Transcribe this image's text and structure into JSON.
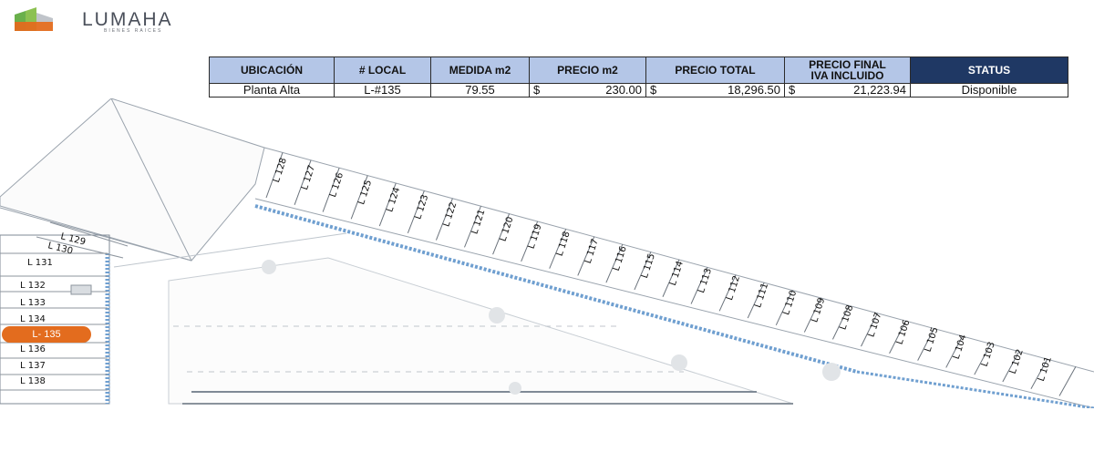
{
  "brand": {
    "name": "LUMAHA",
    "tagline": "BIENES RAICES",
    "colors": {
      "green": "#6ab04c",
      "orange": "#e36c1e",
      "gray": "#4a4f5a"
    }
  },
  "table": {
    "headers": {
      "ubicacion": "UBICACIÓN",
      "local": "# LOCAL",
      "medida": "MEDIDA m2",
      "precio_m2": "PRECIO m2",
      "precio_total": "PRECIO TOTAL",
      "precio_final_1": "PRECIO FINAL",
      "precio_final_2": "IVA INCLUIDO",
      "status": "STATUS"
    },
    "row": {
      "ubicacion": "Planta Alta",
      "local": "L-#135",
      "medida": "79.55",
      "currency": "$",
      "precio_m2": "230.00",
      "precio_total": "18,296.50",
      "precio_final": "21,223.94",
      "status": "Disponible"
    },
    "colors": {
      "header_bg": "#b4c6e7",
      "status_bg": "#1f3864"
    }
  },
  "plan": {
    "highlight": "L- 135",
    "highlight_color": "#e36c1e",
    "left_units": [
      "L 131",
      "L 132",
      "L 133",
      "L 134",
      "L 136",
      "L 137",
      "L 138"
    ],
    "upper_left_units": [
      "L 129",
      "L 130"
    ],
    "diagonal_units": [
      "L 128",
      "L 127",
      "L 126",
      "L 125",
      "L 124",
      "L 123",
      "L 122",
      "L 121",
      "L 120",
      "L 119",
      "L 118",
      "L 117",
      "L 116",
      "L 115",
      "L 114",
      "L 113",
      "L 112",
      "L 111",
      "L 110",
      "L 109",
      "L 108",
      "L 107",
      "L 106",
      "L 105",
      "L 104",
      "L 103",
      "L 102",
      "L 101"
    ]
  }
}
